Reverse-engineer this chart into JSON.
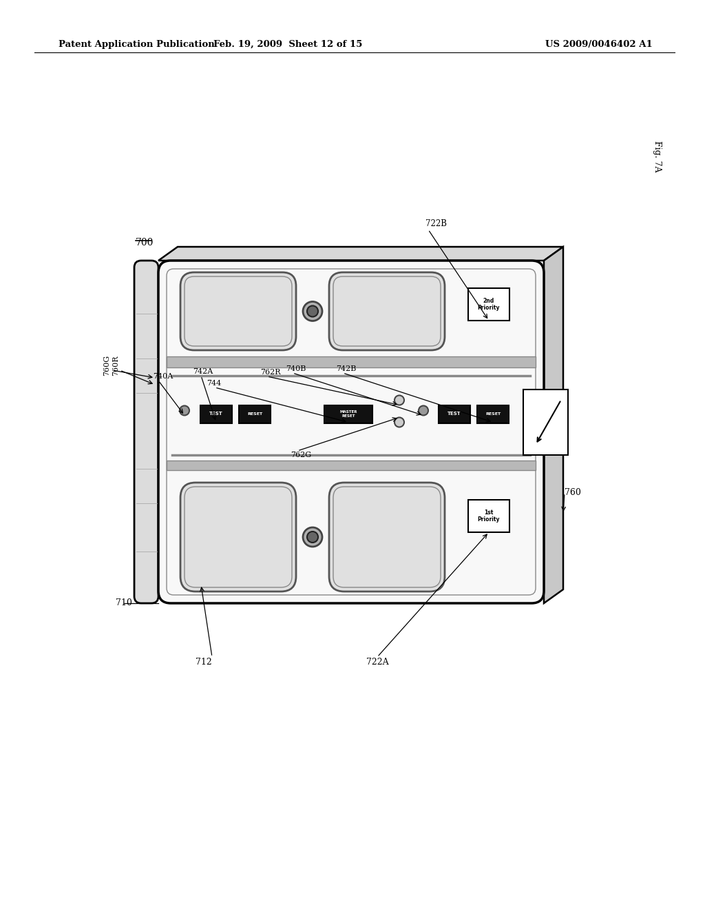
{
  "bg_color": "#ffffff",
  "header_left": "Patent Application Publication",
  "header_mid": "Feb. 19, 2009  Sheet 12 of 15",
  "header_right": "US 2009/0046402 A1",
  "fig_label": "FIG. 7A",
  "label_700": "700",
  "label_710": "710",
  "label_712": "712",
  "label_722A": "722A",
  "label_722B": "722B",
  "label_740A": "740A",
  "label_740B": "740B",
  "label_742A": "742A",
  "label_742B": "742B",
  "label_744": "744",
  "label_760": "760",
  "label_760G": "760G",
  "label_760R": "760R",
  "label_762R": "762R",
  "label_762G": "762G",
  "face_color": "#f8f8f8",
  "side_color": "#e0e0e0",
  "strip_color": "#cccccc",
  "outlet_color": "#e8e8e8",
  "btn_color": "#111111"
}
